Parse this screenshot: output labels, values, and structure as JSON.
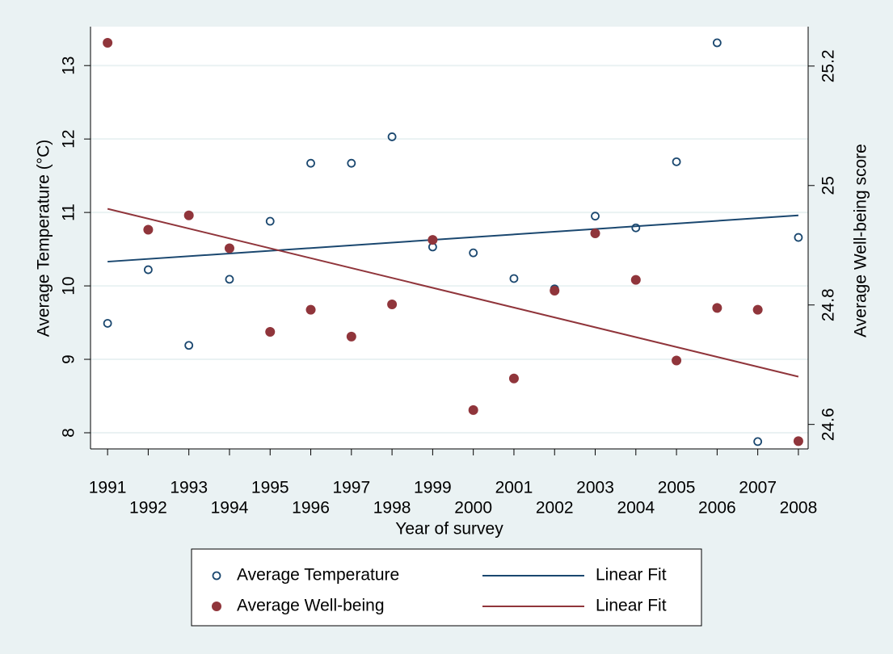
{
  "chart_data": {
    "type": "scatter",
    "x_label": "Year of survey",
    "y_label": "Average Temperature (°C)",
    "y2_label": "Average Well-being score",
    "xlim": [
      1990.58,
      2008.24
    ],
    "xticks": [
      1991,
      1992,
      1993,
      1994,
      1995,
      1996,
      1997,
      1998,
      1999,
      2000,
      2001,
      2002,
      2003,
      2004,
      2005,
      2006,
      2007,
      2008
    ],
    "ylim": [
      7.78,
      13.53
    ],
    "yticks": [
      8,
      9,
      10,
      11,
      12,
      13
    ],
    "y2lim": [
      24.559,
      25.266
    ],
    "y2ticks": [
      24.6,
      24.8,
      25,
      25.2
    ],
    "grid": true,
    "legend": "bottom",
    "series": [
      {
        "name": "Average Temperature",
        "color": "#1a476f",
        "marker": "hollow",
        "axis": "y",
        "x": [
          1991,
          1992,
          1993,
          1994,
          1995,
          1996,
          1997,
          1998,
          1999,
          2000,
          2001,
          2002,
          2003,
          2004,
          2005,
          2006,
          2007,
          2008
        ],
        "values": [
          9.49,
          10.22,
          9.19,
          10.09,
          10.88,
          11.67,
          11.67,
          12.03,
          10.53,
          10.45,
          10.1,
          9.96,
          10.95,
          10.79,
          11.69,
          13.31,
          7.88,
          10.66
        ]
      },
      {
        "name": "Linear Fit",
        "color": "#1a476f",
        "marker": "line",
        "axis": "y",
        "x": [
          1991,
          2008
        ],
        "values": [
          10.33,
          10.96
        ]
      },
      {
        "name": "Average Well-being",
        "color": "#90353b",
        "marker": "filled",
        "axis": "y2",
        "x": [
          1991,
          1992,
          1993,
          1994,
          1995,
          1996,
          1997,
          1998,
          1999,
          2000,
          2001,
          2002,
          2003,
          2004,
          2005,
          2006,
          2007,
          2008
        ],
        "values": [
          25.239,
          24.926,
          24.95,
          24.895,
          24.755,
          24.792,
          24.747,
          24.801,
          24.909,
          24.624,
          24.677,
          24.824,
          24.92,
          24.842,
          24.707,
          24.795,
          24.792,
          24.572
        ]
      },
      {
        "name": "Linear Fit",
        "color": "#90353b",
        "marker": "line",
        "axis": "y2",
        "x": [
          1991,
          2008
        ],
        "values": [
          24.961,
          24.68
        ]
      }
    ]
  }
}
